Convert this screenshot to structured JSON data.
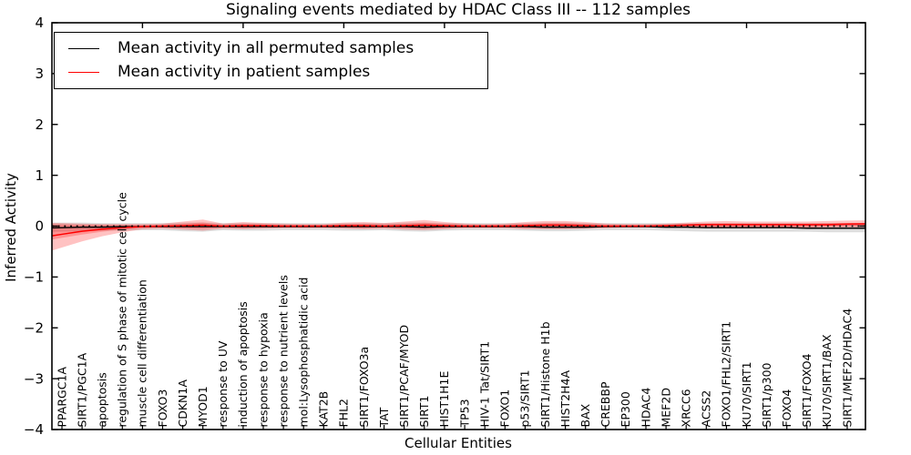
{
  "chart_data": {
    "type": "line",
    "title": "Signaling events mediated by HDAC Class III -- 112 samples",
    "xlabel": "Cellular Entities",
    "ylabel": "Inferred Activity",
    "ylim": [
      -4,
      4
    ],
    "yticks": [
      4,
      3,
      2,
      1,
      0,
      -1,
      -2,
      -3,
      -4
    ],
    "ytick_labels": [
      "4",
      "3",
      "2",
      "1",
      "0",
      "−1",
      "−2",
      "−3",
      "−4"
    ],
    "top_tick_every": 5,
    "grid": false,
    "legend": {
      "position": "upper left",
      "entries": [
        {
          "label": "Mean activity in all permuted samples",
          "color": "#000000"
        },
        {
          "label": "Mean activity in patient samples",
          "color": "#ff0000"
        }
      ]
    },
    "categories": [
      "PPARGC1A",
      "SIRT1/PGC1A",
      "apoptosis",
      "regulation of S phase of mitotic cell cycle",
      "muscle cell differentiation",
      "FOXO3",
      "CDKN1A",
      "MYOD1",
      "response to UV",
      "induction of apoptosis",
      "response to hypoxia",
      "response to nutrient levels",
      "mol:Lysophosphatidic acid",
      "KAT2B",
      "FHL2",
      "SIRT1/FOXO3a",
      "TAT",
      "SIRT1/PCAF/MYOD",
      "SIRT1",
      "HIST1H1E",
      "TP53",
      "HIV-1 Tat/SIRT1",
      "FOXO1",
      "p53/SIRT1",
      "SIRT1/Histone H1b",
      "HIST2H4A",
      "BAX",
      "CREBBP",
      "EP300",
      "HDAC4",
      "MEF2D",
      "XRCC6",
      "ACSS2",
      "FOXO1/FHL2/SIRT1",
      "KU70/SIRT1",
      "SIRT1/p300",
      "FOXO4",
      "SIRT1/FOXO4",
      "KU70/SIRT1/BAX",
      "SIRT1/MEF2D/HDAC4"
    ],
    "series": [
      {
        "name": "Mean activity in all permuted samples",
        "color": "#000000",
        "style": "solid",
        "values": [
          -0.03,
          -0.02,
          -0.02,
          -0.01,
          -0.01,
          -0.01,
          -0.01,
          -0.01,
          -0.01,
          -0.01,
          -0.01,
          -0.01,
          -0.01,
          -0.01,
          -0.01,
          -0.01,
          -0.01,
          -0.01,
          -0.02,
          -0.01,
          -0.01,
          -0.01,
          -0.01,
          -0.01,
          -0.02,
          -0.02,
          -0.02,
          -0.01,
          -0.01,
          -0.01,
          -0.02,
          -0.02,
          -0.03,
          -0.03,
          -0.03,
          -0.03,
          -0.03,
          -0.04,
          -0.04,
          -0.04
        ]
      },
      {
        "name": "Mean activity in patient samples",
        "color": "#ff0000",
        "style": "solid",
        "values": [
          -0.16,
          -0.1,
          -0.06,
          -0.03,
          -0.01,
          0.0,
          0.01,
          0.02,
          0.0,
          0.01,
          0.01,
          0.0,
          0.0,
          0.0,
          0.01,
          0.01,
          0.0,
          0.01,
          0.02,
          0.01,
          0.0,
          0.0,
          0.0,
          0.01,
          0.02,
          0.02,
          0.01,
          0.0,
          0.0,
          0.0,
          0.01,
          0.02,
          0.03,
          0.03,
          0.03,
          0.03,
          0.03,
          0.03,
          0.03,
          0.04
        ]
      }
    ],
    "bands": [
      {
        "name": "permuted-samples-spread",
        "color": "#000000",
        "alpha": 0.13,
        "hi": [
          0.07,
          0.07,
          0.06,
          0.06,
          0.06,
          0.06,
          0.07,
          0.07,
          0.06,
          0.06,
          0.06,
          0.06,
          0.06,
          0.06,
          0.06,
          0.06,
          0.06,
          0.07,
          0.07,
          0.06,
          0.06,
          0.06,
          0.06,
          0.06,
          0.07,
          0.07,
          0.06,
          0.06,
          0.06,
          0.06,
          0.06,
          0.06,
          0.06,
          0.06,
          0.06,
          0.06,
          0.06,
          0.06,
          0.06,
          0.06
        ],
        "lo": [
          -0.11,
          -0.1,
          -0.09,
          -0.09,
          -0.08,
          -0.08,
          -0.1,
          -0.11,
          -0.08,
          -0.09,
          -0.09,
          -0.08,
          -0.08,
          -0.08,
          -0.09,
          -0.09,
          -0.08,
          -0.1,
          -0.11,
          -0.09,
          -0.08,
          -0.08,
          -0.08,
          -0.09,
          -0.1,
          -0.1,
          -0.09,
          -0.08,
          -0.08,
          -0.08,
          -0.09,
          -0.1,
          -0.11,
          -0.11,
          -0.11,
          -0.11,
          -0.11,
          -0.11,
          -0.12,
          -0.12
        ]
      },
      {
        "name": "patient-samples-spread",
        "color": "#ff0000",
        "alpha": 0.24,
        "hi": [
          0.06,
          0.05,
          0.04,
          0.04,
          0.04,
          0.05,
          0.09,
          0.13,
          0.05,
          0.08,
          0.06,
          0.05,
          0.04,
          0.04,
          0.07,
          0.08,
          0.06,
          0.09,
          0.12,
          0.08,
          0.05,
          0.04,
          0.05,
          0.08,
          0.1,
          0.1,
          0.08,
          0.05,
          0.04,
          0.04,
          0.05,
          0.07,
          0.09,
          0.1,
          0.09,
          0.09,
          0.09,
          0.09,
          0.1,
          0.11
        ],
        "lo": [
          -0.42,
          -0.3,
          -0.2,
          -0.12,
          -0.06,
          -0.05,
          -0.07,
          -0.09,
          -0.05,
          -0.06,
          -0.05,
          -0.04,
          -0.04,
          -0.04,
          -0.05,
          -0.06,
          -0.05,
          -0.07,
          -0.08,
          -0.06,
          -0.04,
          -0.04,
          -0.04,
          -0.06,
          -0.06,
          -0.06,
          -0.05,
          -0.04,
          -0.03,
          -0.03,
          -0.03,
          -0.03,
          -0.03,
          -0.03,
          -0.03,
          -0.03,
          -0.03,
          -0.03,
          -0.02,
          -0.02
        ]
      }
    ],
    "reference_line": {
      "value": 0,
      "style": "dotted",
      "color": "#000000"
    }
  }
}
